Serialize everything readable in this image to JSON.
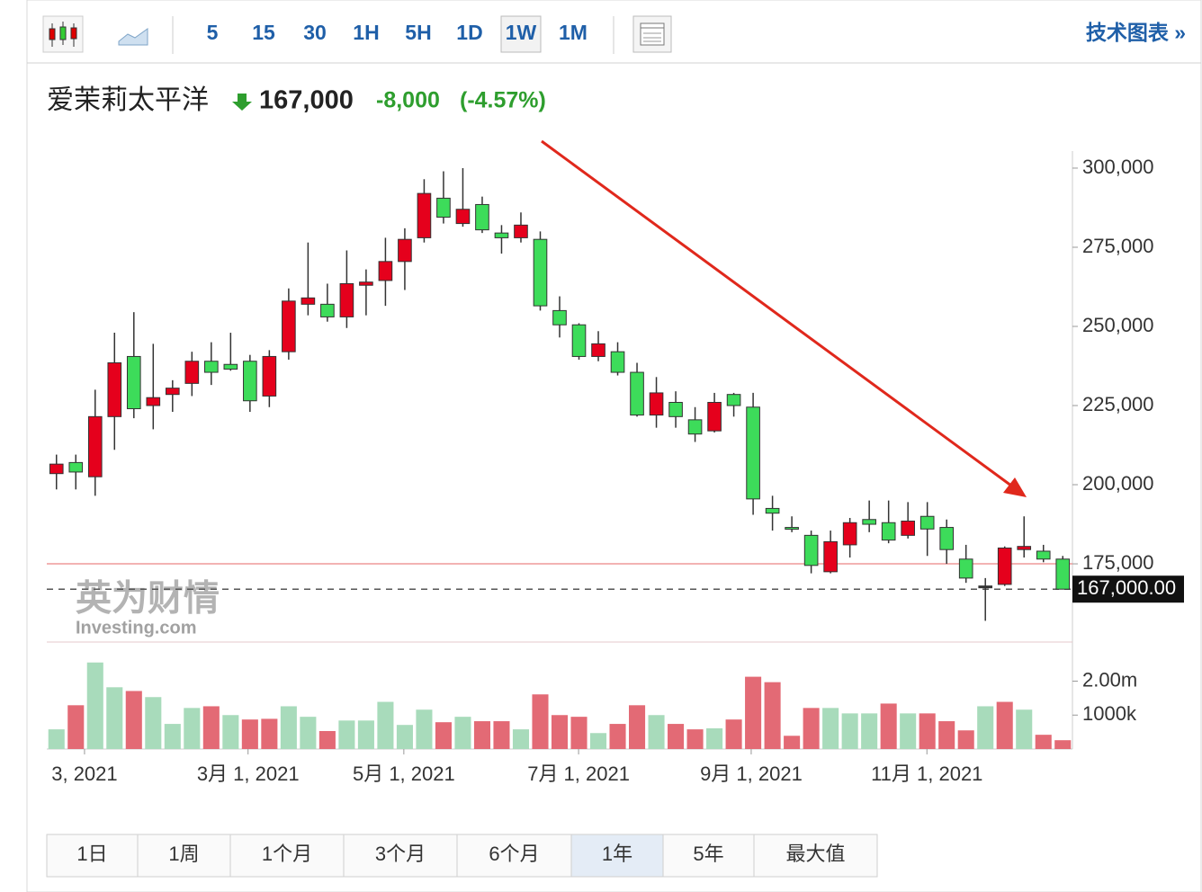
{
  "toolbar": {
    "intervals": [
      "5",
      "15",
      "30",
      "1H",
      "5H",
      "1D",
      "1W",
      "1M"
    ],
    "active_index": 6,
    "link": "技术图表 »"
  },
  "quote": {
    "name": "爱茉莉太平洋",
    "price": "167,000",
    "change": "-8,000",
    "change_pct": "(-4.57%)"
  },
  "chart_data": {
    "type": "candlestick",
    "open": [
      203500,
      207000,
      202500,
      221500,
      240500,
      225000,
      228500,
      232000,
      239000,
      238000,
      239000,
      228000,
      242000,
      257000,
      257000,
      253000,
      263000,
      264500,
      270500,
      278000,
      290500,
      282500,
      288500,
      279500,
      278000,
      277500,
      255000,
      250500,
      240500,
      242000,
      235500,
      222000,
      226000,
      220500,
      217000,
      228500,
      224500,
      192500,
      186500,
      184000,
      172500,
      181000,
      189000,
      188000,
      184000,
      190000,
      186500,
      176500,
      168000,
      168500,
      179500,
      179000,
      176500
    ],
    "high": [
      209500,
      209500,
      230000,
      248000,
      254500,
      244500,
      233000,
      242000,
      245000,
      248000,
      241000,
      242500,
      262000,
      276500,
      263500,
      274000,
      268000,
      278000,
      281000,
      296500,
      299000,
      300000,
      291000,
      282000,
      286000,
      280000,
      259500,
      251000,
      248500,
      245000,
      238500,
      234000,
      229500,
      224500,
      229000,
      229000,
      229000,
      196500,
      190000,
      185500,
      185500,
      189500,
      195000,
      195000,
      194500,
      194500,
      189000,
      181000,
      170500,
      180500,
      190000,
      181000,
      177500
    ],
    "low": [
      198500,
      198500,
      196500,
      211000,
      221000,
      217500,
      223000,
      228000,
      231500,
      236000,
      223000,
      224500,
      239500,
      253500,
      251500,
      249500,
      253500,
      256500,
      261500,
      276500,
      282500,
      281500,
      279500,
      273000,
      276500,
      255000,
      246500,
      239500,
      239000,
      234500,
      221500,
      218000,
      218000,
      213500,
      216500,
      221500,
      190500,
      185500,
      185000,
      172000,
      172000,
      177000,
      185000,
      181500,
      183000,
      177500,
      175000,
      169000,
      157000,
      168000,
      177000,
      175500,
      167000
    ],
    "close": [
      206500,
      204000,
      221500,
      238500,
      224000,
      227500,
      230500,
      239000,
      235500,
      236500,
      226500,
      240500,
      258000,
      259000,
      253000,
      263500,
      264000,
      270500,
      277500,
      292000,
      284500,
      287000,
      280500,
      278000,
      282000,
      256500,
      250500,
      240500,
      244500,
      235500,
      222000,
      229000,
      221500,
      216000,
      226000,
      225000,
      195500,
      191000,
      186000,
      174500,
      182000,
      188000,
      187500,
      182500,
      188500,
      186000,
      179500,
      170500,
      168000,
      180000,
      180500,
      176500,
      167000
    ],
    "up_color": "#e5001c",
    "down_color": "#3ddc5a",
    "xlim": [
      -0.5,
      52.5
    ],
    "xticks": [
      {
        "value": 1.45,
        "label": "3, 2021"
      },
      {
        "value": 9.9,
        "label": "3月 1, 2021"
      },
      {
        "value": 17.95,
        "label": "5月 1, 2021"
      },
      {
        "value": 26.98,
        "label": "7月 1, 2021"
      },
      {
        "value": 35.9,
        "label": "9月 1, 2021"
      },
      {
        "value": 44.98,
        "label": "11月 1, 2021"
      }
    ],
    "ylim": [
      150300,
      310500
    ],
    "yticks": [
      {
        "value": 300000,
        "label": "300,000"
      },
      {
        "value": 275000,
        "label": "275,000"
      },
      {
        "value": 250000,
        "label": "250,000"
      },
      {
        "value": 225000,
        "label": "225,000"
      },
      {
        "value": 200000,
        "label": "200,000"
      },
      {
        "value": 175000,
        "label": "175,000"
      }
    ],
    "prev_close": 175000,
    "last_price": {
      "value": 167000,
      "label": "167,000.00"
    },
    "volume": {
      "values": [
        580000,
        1290000,
        2550000,
        1820000,
        1710000,
        1530000,
        740000,
        1210000,
        1260000,
        1000000,
        870000,
        890000,
        1260000,
        950000,
        530000,
        840000,
        840000,
        1390000,
        710000,
        1160000,
        790000,
        950000,
        820000,
        820000,
        580000,
        1610000,
        1000000,
        950000,
        470000,
        740000,
        1290000,
        1000000,
        740000,
        580000,
        610000,
        870000,
        2130000,
        1970000,
        390000,
        1210000,
        1210000,
        1050000,
        1050000,
        1340000,
        1050000,
        1050000,
        820000,
        550000,
        1260000,
        1390000,
        1160000,
        420000,
        260000
      ],
      "colors": [
        "#a8dbbb",
        "#e36a75",
        "#a8dbbb",
        "#a8dbbb",
        "#e36a75",
        "#a8dbbb",
        "#a8dbbb",
        "#a8dbbb",
        "#e36a75",
        "#a8dbbb",
        "#e36a75",
        "#e36a75",
        "#a8dbbb",
        "#a8dbbb",
        "#e36a75",
        "#a8dbbb",
        "#a8dbbb",
        "#a8dbbb",
        "#a8dbbb",
        "#a8dbbb",
        "#e36a75",
        "#a8dbbb",
        "#e36a75",
        "#e36a75",
        "#a8dbbb",
        "#e36a75",
        "#e36a75",
        "#e36a75",
        "#a8dbbb",
        "#e36a75",
        "#e36a75",
        "#a8dbbb",
        "#e36a75",
        "#e36a75",
        "#a8dbbb",
        "#e36a75",
        "#e36a75",
        "#e36a75",
        "#e36a75",
        "#e36a75",
        "#a8dbbb",
        "#a8dbbb",
        "#a8dbbb",
        "#e36a75",
        "#a8dbbb",
        "#e36a75",
        "#e36a75",
        "#e36a75",
        "#a8dbbb",
        "#e36a75",
        "#a8dbbb",
        "#e36a75",
        "#e36a75"
      ],
      "ylim": [
        0,
        3100000
      ],
      "yticks": [
        {
          "value": 2000000,
          "label": "2.00m"
        },
        {
          "value": 1000000,
          "label": "1000k"
        }
      ]
    }
  },
  "watermark": {
    "brand": "英为财情",
    "site": "Investing.com"
  },
  "ranges": {
    "buttons": [
      "1日",
      "1周",
      "1个月",
      "3个月",
      "6个月",
      "1年",
      "5年",
      "最大值"
    ],
    "active_index": 5
  }
}
